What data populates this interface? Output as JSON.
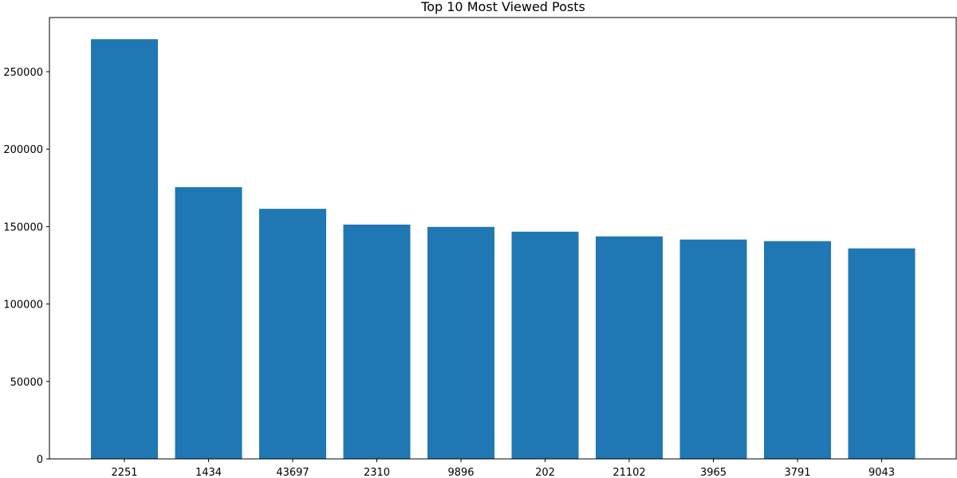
{
  "chart_data": {
    "type": "bar",
    "title": "Top 10 Most Viewed Posts",
    "xlabel": "",
    "ylabel": "",
    "categories": [
      "2251",
      "1434",
      "43697",
      "2310",
      "9896",
      "202",
      "21102",
      "3965",
      "3791",
      "9043"
    ],
    "values": [
      271000,
      175500,
      161500,
      151300,
      149800,
      146700,
      143700,
      141600,
      140600,
      135900
    ],
    "ylim": [
      0,
      285000
    ],
    "yticks": [
      0,
      50000,
      100000,
      150000,
      200000,
      250000
    ],
    "ytick_labels": [
      "0",
      "50000",
      "100000",
      "150000",
      "200000",
      "250000"
    ],
    "grid": false,
    "bar_color": "#1f77b4"
  }
}
